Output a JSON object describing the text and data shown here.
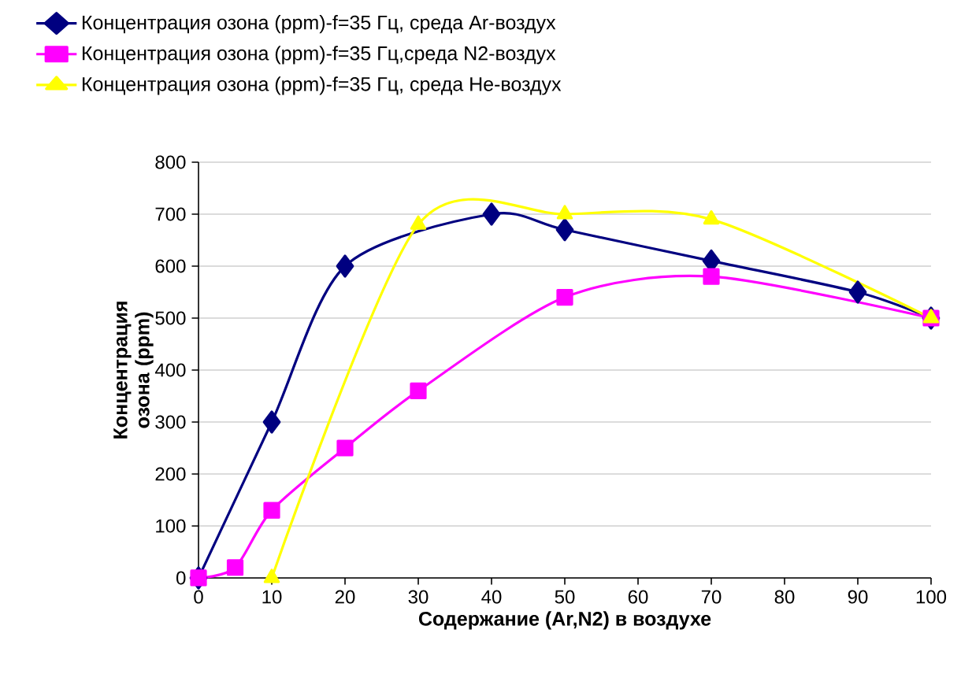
{
  "chart_data": {
    "type": "line",
    "xlabel": "Содержание (Ar,N2) в воздухе",
    "ylabel": "Концентрация озона (ppm)",
    "xlim": [
      0,
      100
    ],
    "ylim": [
      0,
      800
    ],
    "xticks": [
      0,
      10,
      20,
      30,
      40,
      50,
      60,
      70,
      80,
      90,
      100
    ],
    "yticks": [
      0,
      100,
      200,
      300,
      400,
      500,
      600,
      700,
      800
    ],
    "grid": "y",
    "legend": "top",
    "line_style": "solid",
    "series": [
      {
        "name": "Концентрация озона (ppm)-f=35 Гц, среда Ar-воздух",
        "color": "#000080",
        "marker": "diamond",
        "x": [
          0,
          10,
          20,
          40,
          50,
          70,
          90,
          100
        ],
        "values": [
          0,
          300,
          600,
          700,
          670,
          610,
          550,
          500
        ]
      },
      {
        "name": "Концентрация озона (ppm)-f=35 Гц,среда N2-воздух",
        "color": "#ff00ff",
        "marker": "square",
        "x": [
          0,
          5,
          10,
          20,
          30,
          50,
          70,
          100
        ],
        "values": [
          0,
          20,
          130,
          250,
          360,
          540,
          580,
          500
        ]
      },
      {
        "name": "Концентрация озона (ppm)-f=35 Гц, среда He-воздух",
        "color": "#ffff00",
        "marker": "triangle",
        "x": [
          10,
          30,
          50,
          70,
          100
        ],
        "values": [
          0,
          680,
          700,
          690,
          500
        ]
      }
    ]
  }
}
